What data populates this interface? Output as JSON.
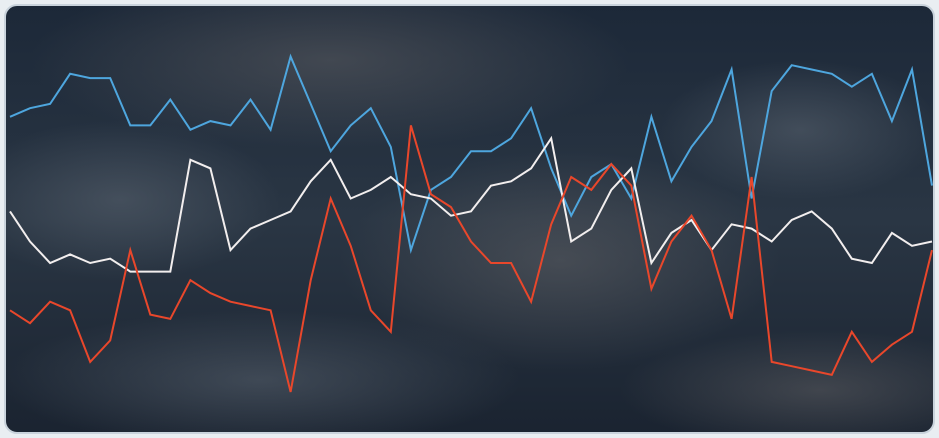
{
  "chart_data": {
    "type": "line",
    "ylim": [
      0,
      100
    ],
    "series": [
      {
        "color": "#4ea6de",
        "values": [
          74,
          76,
          77,
          84,
          83,
          83,
          72,
          72,
          78,
          71,
          73,
          72,
          78,
          71,
          88,
          77,
          66,
          72,
          76,
          67,
          43,
          57,
          60,
          66,
          66,
          69,
          76,
          62,
          51,
          60,
          63,
          55,
          74,
          59,
          67,
          73,
          85,
          55,
          80,
          86,
          85,
          84,
          81,
          84,
          73,
          85,
          58
        ]
      },
      {
        "color": "#f2eeee",
        "values": [
          52,
          45,
          40,
          42,
          40,
          41,
          38,
          38,
          38,
          64,
          62,
          43,
          48,
          50,
          52,
          59,
          64,
          55,
          57,
          60,
          56,
          55,
          51,
          52,
          58,
          59,
          62,
          69,
          45,
          48,
          57,
          62,
          40,
          47,
          50,
          43,
          49,
          48,
          45,
          50,
          52,
          48,
          41,
          40,
          47,
          44,
          45
        ]
      },
      {
        "color": "#e9472b",
        "values": [
          29,
          26,
          31,
          29,
          17,
          22,
          43,
          28,
          27,
          36,
          33,
          31,
          30,
          29,
          10,
          36,
          55,
          44,
          29,
          24,
          72,
          56,
          53,
          45,
          40,
          40,
          31,
          49,
          60,
          57,
          63,
          58,
          34,
          45,
          51,
          43,
          27,
          60,
          17,
          16,
          15,
          14,
          24,
          17,
          21,
          24,
          43
        ]
      }
    ]
  }
}
